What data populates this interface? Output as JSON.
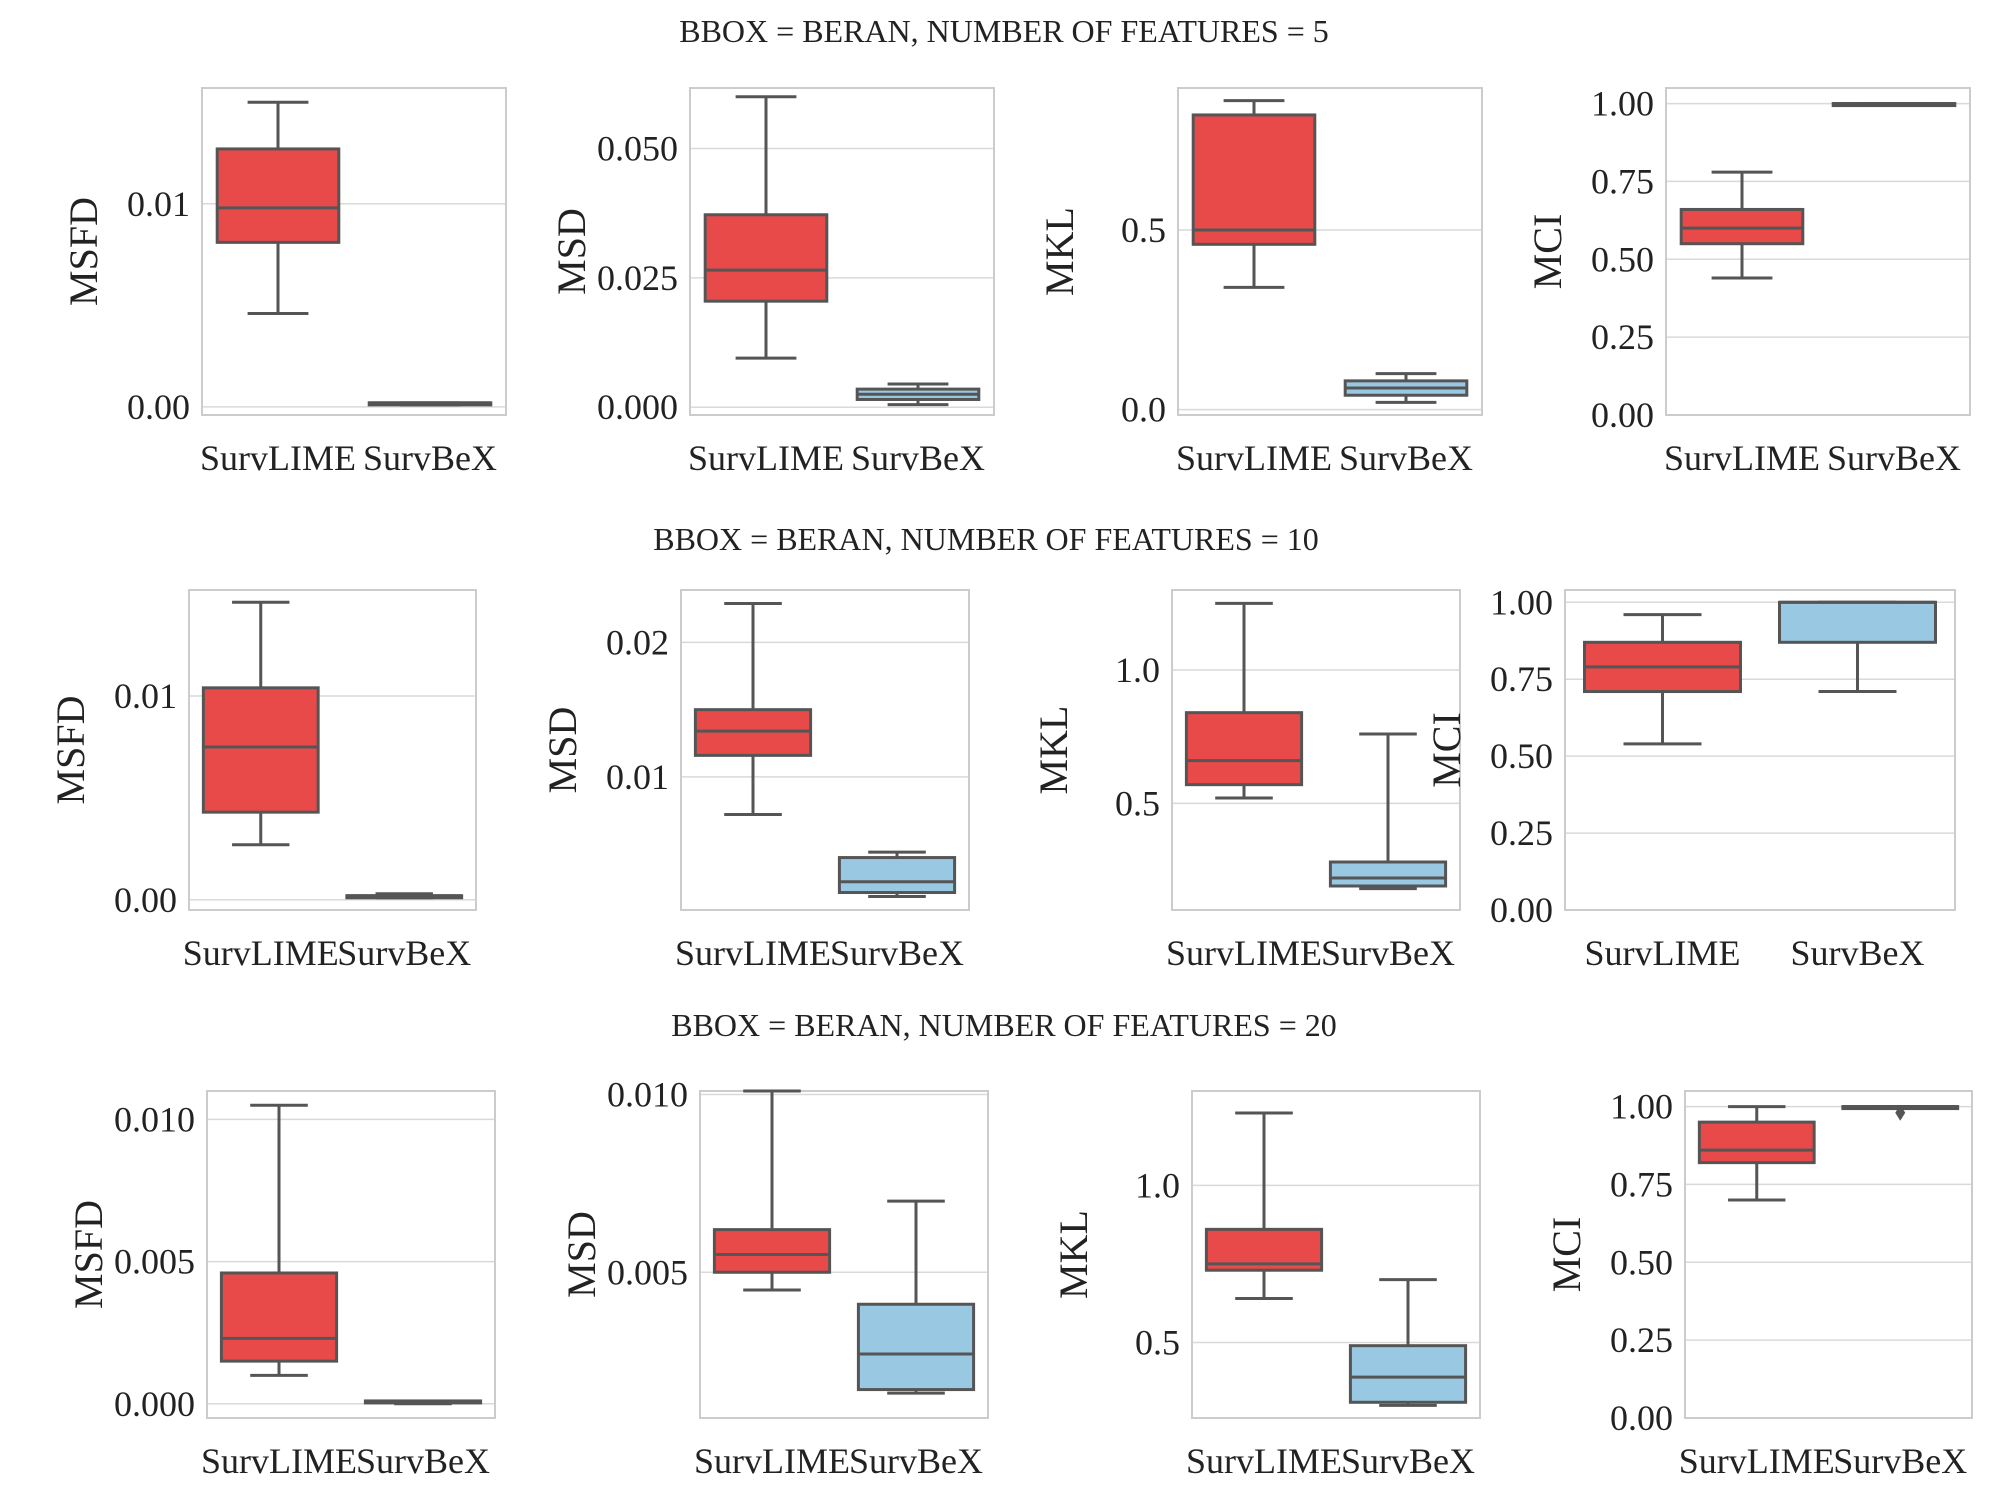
{
  "colors": {
    "survlime": "#e84a4a",
    "survbex": "#99c8e3",
    "line": "#555555",
    "grid": "#d9d9d9",
    "frame": "#cccccc"
  },
  "rows": [
    {
      "title": "BBOX = BERAN, NUMBER OF FEATURES = 5"
    },
    {
      "title": "BBOX = BERAN, NUMBER OF FEATURES = 10"
    },
    {
      "title": "BBOX = BERAN, NUMBER OF FEATURES = 20"
    }
  ],
  "chart_data": [
    {
      "type": "box",
      "row": 0,
      "col": 0,
      "ylabel": "MSFD",
      "ylim": [
        -0.0004,
        0.0157
      ],
      "yticks": [
        {
          "value": 0.0,
          "label": "0.00"
        },
        {
          "value": 0.01,
          "label": "0.01"
        }
      ],
      "categories": [
        "SurvLIME",
        "SurvBeX"
      ],
      "boxes": [
        {
          "name": "SurvLIME",
          "min": 0.0046,
          "q1": 0.0081,
          "median": 0.0098,
          "q3": 0.0127,
          "max": 0.015
        },
        {
          "name": "SurvBeX",
          "min": 0.0001,
          "q1": 0.0001,
          "median": 0.0002,
          "q3": 0.0002,
          "max": 0.0002
        }
      ]
    },
    {
      "type": "box",
      "row": 0,
      "col": 1,
      "ylabel": "MSD",
      "ylim": [
        -0.0015,
        0.0617
      ],
      "yticks": [
        {
          "value": 0.0,
          "label": "0.000"
        },
        {
          "value": 0.025,
          "label": "0.025"
        },
        {
          "value": 0.05,
          "label": "0.050"
        }
      ],
      "categories": [
        "SurvLIME",
        "SurvBeX"
      ],
      "boxes": [
        {
          "name": "SurvLIME",
          "min": 0.0095,
          "q1": 0.0205,
          "median": 0.0265,
          "q3": 0.0372,
          "max": 0.06
        },
        {
          "name": "SurvBeX",
          "min": 0.0005,
          "q1": 0.0015,
          "median": 0.0025,
          "q3": 0.0035,
          "max": 0.0045
        }
      ]
    },
    {
      "type": "box",
      "row": 0,
      "col": 2,
      "ylabel": "MKL",
      "ylim": [
        -0.015,
        0.895
      ],
      "yticks": [
        {
          "value": 0.0,
          "label": "0.0"
        },
        {
          "value": 0.5,
          "label": "0.5"
        }
      ],
      "categories": [
        "SurvLIME",
        "SurvBeX"
      ],
      "boxes": [
        {
          "name": "SurvLIME",
          "min": 0.34,
          "q1": 0.46,
          "median": 0.5,
          "q3": 0.82,
          "max": 0.86
        },
        {
          "name": "SurvBeX",
          "min": 0.02,
          "q1": 0.04,
          "median": 0.06,
          "q3": 0.08,
          "max": 0.1
        }
      ]
    },
    {
      "type": "box",
      "row": 0,
      "col": 3,
      "ylabel": "MCI",
      "ylim": [
        0.0,
        1.05
      ],
      "yticks": [
        {
          "value": 0.0,
          "label": "0.00"
        },
        {
          "value": 0.25,
          "label": "0.25"
        },
        {
          "value": 0.5,
          "label": "0.50"
        },
        {
          "value": 0.75,
          "label": "0.75"
        },
        {
          "value": 1.0,
          "label": "1.00"
        }
      ],
      "categories": [
        "SurvLIME",
        "SurvBeX"
      ],
      "boxes": [
        {
          "name": "SurvLIME",
          "min": 0.44,
          "q1": 0.55,
          "median": 0.6,
          "q3": 0.66,
          "max": 0.78
        },
        {
          "name": "SurvBeX",
          "min": 1.0,
          "q1": 1.0,
          "median": 1.0,
          "q3": 1.0,
          "max": 1.0
        }
      ]
    },
    {
      "type": "box",
      "row": 1,
      "col": 0,
      "ylabel": "MSFD",
      "ylim": [
        -0.0005,
        0.0152
      ],
      "yticks": [
        {
          "value": 0.0,
          "label": "0.00"
        },
        {
          "value": 0.01,
          "label": "0.01"
        }
      ],
      "categories": [
        "SurvLIME",
        "SurvBeX"
      ],
      "boxes": [
        {
          "name": "SurvLIME",
          "min": 0.0027,
          "q1": 0.0043,
          "median": 0.0075,
          "q3": 0.0104,
          "max": 0.0146
        },
        {
          "name": "SurvBeX",
          "min": 0.0001,
          "q1": 0.0001,
          "median": 0.0002,
          "q3": 0.0002,
          "max": 0.0003
        }
      ]
    },
    {
      "type": "box",
      "row": 1,
      "col": 1,
      "ylabel": "MSD",
      "ylim": [
        0.0001,
        0.0239
      ],
      "yticks": [
        {
          "value": 0.01,
          "label": "0.01"
        },
        {
          "value": 0.02,
          "label": "0.02"
        }
      ],
      "categories": [
        "SurvLIME",
        "SurvBeX"
      ],
      "boxes": [
        {
          "name": "SurvLIME",
          "min": 0.0072,
          "q1": 0.0116,
          "median": 0.0134,
          "q3": 0.015,
          "max": 0.0229
        },
        {
          "name": "SurvBeX",
          "min": 0.0011,
          "q1": 0.0014,
          "median": 0.0022,
          "q3": 0.004,
          "max": 0.0044
        }
      ]
    },
    {
      "type": "box",
      "row": 1,
      "col": 2,
      "ylabel": "MKL",
      "ylim": [
        0.1,
        1.3
      ],
      "yticks": [
        {
          "value": 0.5,
          "label": "0.5"
        },
        {
          "value": 1.0,
          "label": "1.0"
        }
      ],
      "categories": [
        "SurvLIME",
        "SurvBeX"
      ],
      "boxes": [
        {
          "name": "SurvLIME",
          "min": 0.52,
          "q1": 0.57,
          "median": 0.66,
          "q3": 0.84,
          "max": 1.25
        },
        {
          "name": "SurvBeX",
          "min": 0.18,
          "q1": 0.19,
          "median": 0.22,
          "q3": 0.28,
          "max": 0.76
        }
      ]
    },
    {
      "type": "box",
      "row": 1,
      "col": 3,
      "ylabel": "MCI",
      "ylim": [
        0.0,
        1.04
      ],
      "yticks": [
        {
          "value": 0.0,
          "label": "0.00"
        },
        {
          "value": 0.25,
          "label": "0.25"
        },
        {
          "value": 0.5,
          "label": "0.50"
        },
        {
          "value": 0.75,
          "label": "0.75"
        },
        {
          "value": 1.0,
          "label": "1.00"
        }
      ],
      "categories": [
        "SurvLIME",
        "SurvBeX"
      ],
      "boxes": [
        {
          "name": "SurvLIME",
          "min": 0.54,
          "q1": 0.71,
          "median": 0.79,
          "q3": 0.87,
          "max": 0.96
        },
        {
          "name": "SurvBeX",
          "min": 0.71,
          "q1": 0.87,
          "median": 1.0,
          "q3": 1.0,
          "max": 1.0
        }
      ]
    },
    {
      "type": "box",
      "row": 2,
      "col": 0,
      "ylabel": "MSFD",
      "ylim": [
        -0.0005,
        0.011
      ],
      "yticks": [
        {
          "value": 0.0,
          "label": "0.000"
        },
        {
          "value": 0.005,
          "label": "0.005"
        },
        {
          "value": 0.01,
          "label": "0.010"
        }
      ],
      "categories": [
        "SurvLIME",
        "SurvBeX"
      ],
      "boxes": [
        {
          "name": "SurvLIME",
          "min": 0.001,
          "q1": 0.0015,
          "median": 0.0023,
          "q3": 0.0046,
          "max": 0.0105
        },
        {
          "name": "SurvBeX",
          "min": 0.0,
          "q1": 0.0001,
          "median": 0.0001,
          "q3": 0.0001,
          "max": 0.0001
        }
      ]
    },
    {
      "type": "box",
      "row": 2,
      "col": 1,
      "ylabel": "MSD",
      "ylim": [
        0.0009,
        0.0101
      ],
      "yticks": [
        {
          "value": 0.005,
          "label": "0.005"
        },
        {
          "value": 0.01,
          "label": "0.010"
        }
      ],
      "categories": [
        "SurvLIME",
        "SurvBeX"
      ],
      "boxes": [
        {
          "name": "SurvLIME",
          "min": 0.0045,
          "q1": 0.005,
          "median": 0.0055,
          "q3": 0.0062,
          "max": 0.0101
        },
        {
          "name": "SurvBeX",
          "min": 0.0016,
          "q1": 0.0017,
          "median": 0.0027,
          "q3": 0.0041,
          "max": 0.007
        }
      ]
    },
    {
      "type": "box",
      "row": 2,
      "col": 2,
      "ylabel": "MKL",
      "ylim": [
        0.26,
        1.3
      ],
      "yticks": [
        {
          "value": 0.5,
          "label": "0.5"
        },
        {
          "value": 1.0,
          "label": "1.0"
        }
      ],
      "categories": [
        "SurvLIME",
        "SurvBeX"
      ],
      "boxes": [
        {
          "name": "SurvLIME",
          "min": 0.64,
          "q1": 0.73,
          "median": 0.75,
          "q3": 0.86,
          "max": 1.23
        },
        {
          "name": "SurvBeX",
          "min": 0.3,
          "q1": 0.31,
          "median": 0.39,
          "q3": 0.49,
          "max": 0.7
        }
      ]
    },
    {
      "type": "box",
      "row": 2,
      "col": 3,
      "ylabel": "MCI",
      "ylim": [
        0.0,
        1.05
      ],
      "yticks": [
        {
          "value": 0.0,
          "label": "0.00"
        },
        {
          "value": 0.25,
          "label": "0.25"
        },
        {
          "value": 0.5,
          "label": "0.50"
        },
        {
          "value": 0.75,
          "label": "0.75"
        },
        {
          "value": 1.0,
          "label": "1.00"
        }
      ],
      "categories": [
        "SurvLIME",
        "SurvBeX"
      ],
      "boxes": [
        {
          "name": "SurvLIME",
          "min": 0.7,
          "q1": 0.82,
          "median": 0.86,
          "q3": 0.95,
          "max": 1.0
        },
        {
          "name": "SurvBeX",
          "min": 1.0,
          "q1": 1.0,
          "median": 1.0,
          "q3": 1.0,
          "max": 1.0,
          "outliers": [
            0.98
          ]
        }
      ]
    }
  ]
}
